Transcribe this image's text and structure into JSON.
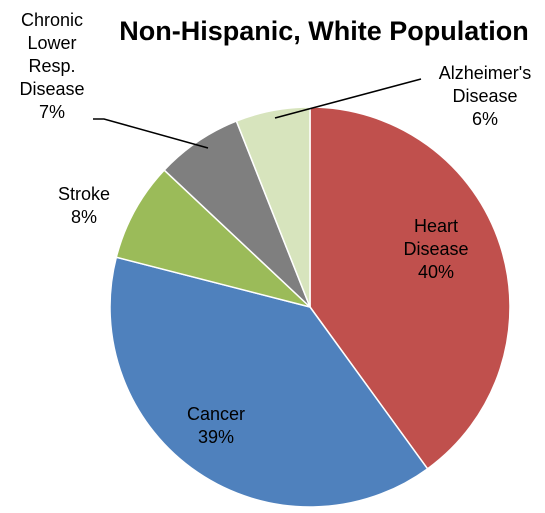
{
  "chart_data": {
    "type": "pie",
    "title": "Non-Hispanic, White Population",
    "slices": [
      {
        "label": "Heart Disease",
        "value": 40,
        "display": "40%",
        "color": "#C0504D"
      },
      {
        "label": "Cancer",
        "value": 39,
        "display": "39%",
        "color": "#4F81BD"
      },
      {
        "label": "Stroke",
        "value": 8,
        "display": "8%",
        "color": "#9BBB59"
      },
      {
        "label": "Chronic Lower Resp. Disease",
        "value": 7,
        "display": "7%",
        "color": "#7F7F7F"
      },
      {
        "label": "Alzheimer's Disease",
        "value": 6,
        "display": "6%",
        "color": "#D7E4BD"
      }
    ],
    "legend": "none"
  }
}
